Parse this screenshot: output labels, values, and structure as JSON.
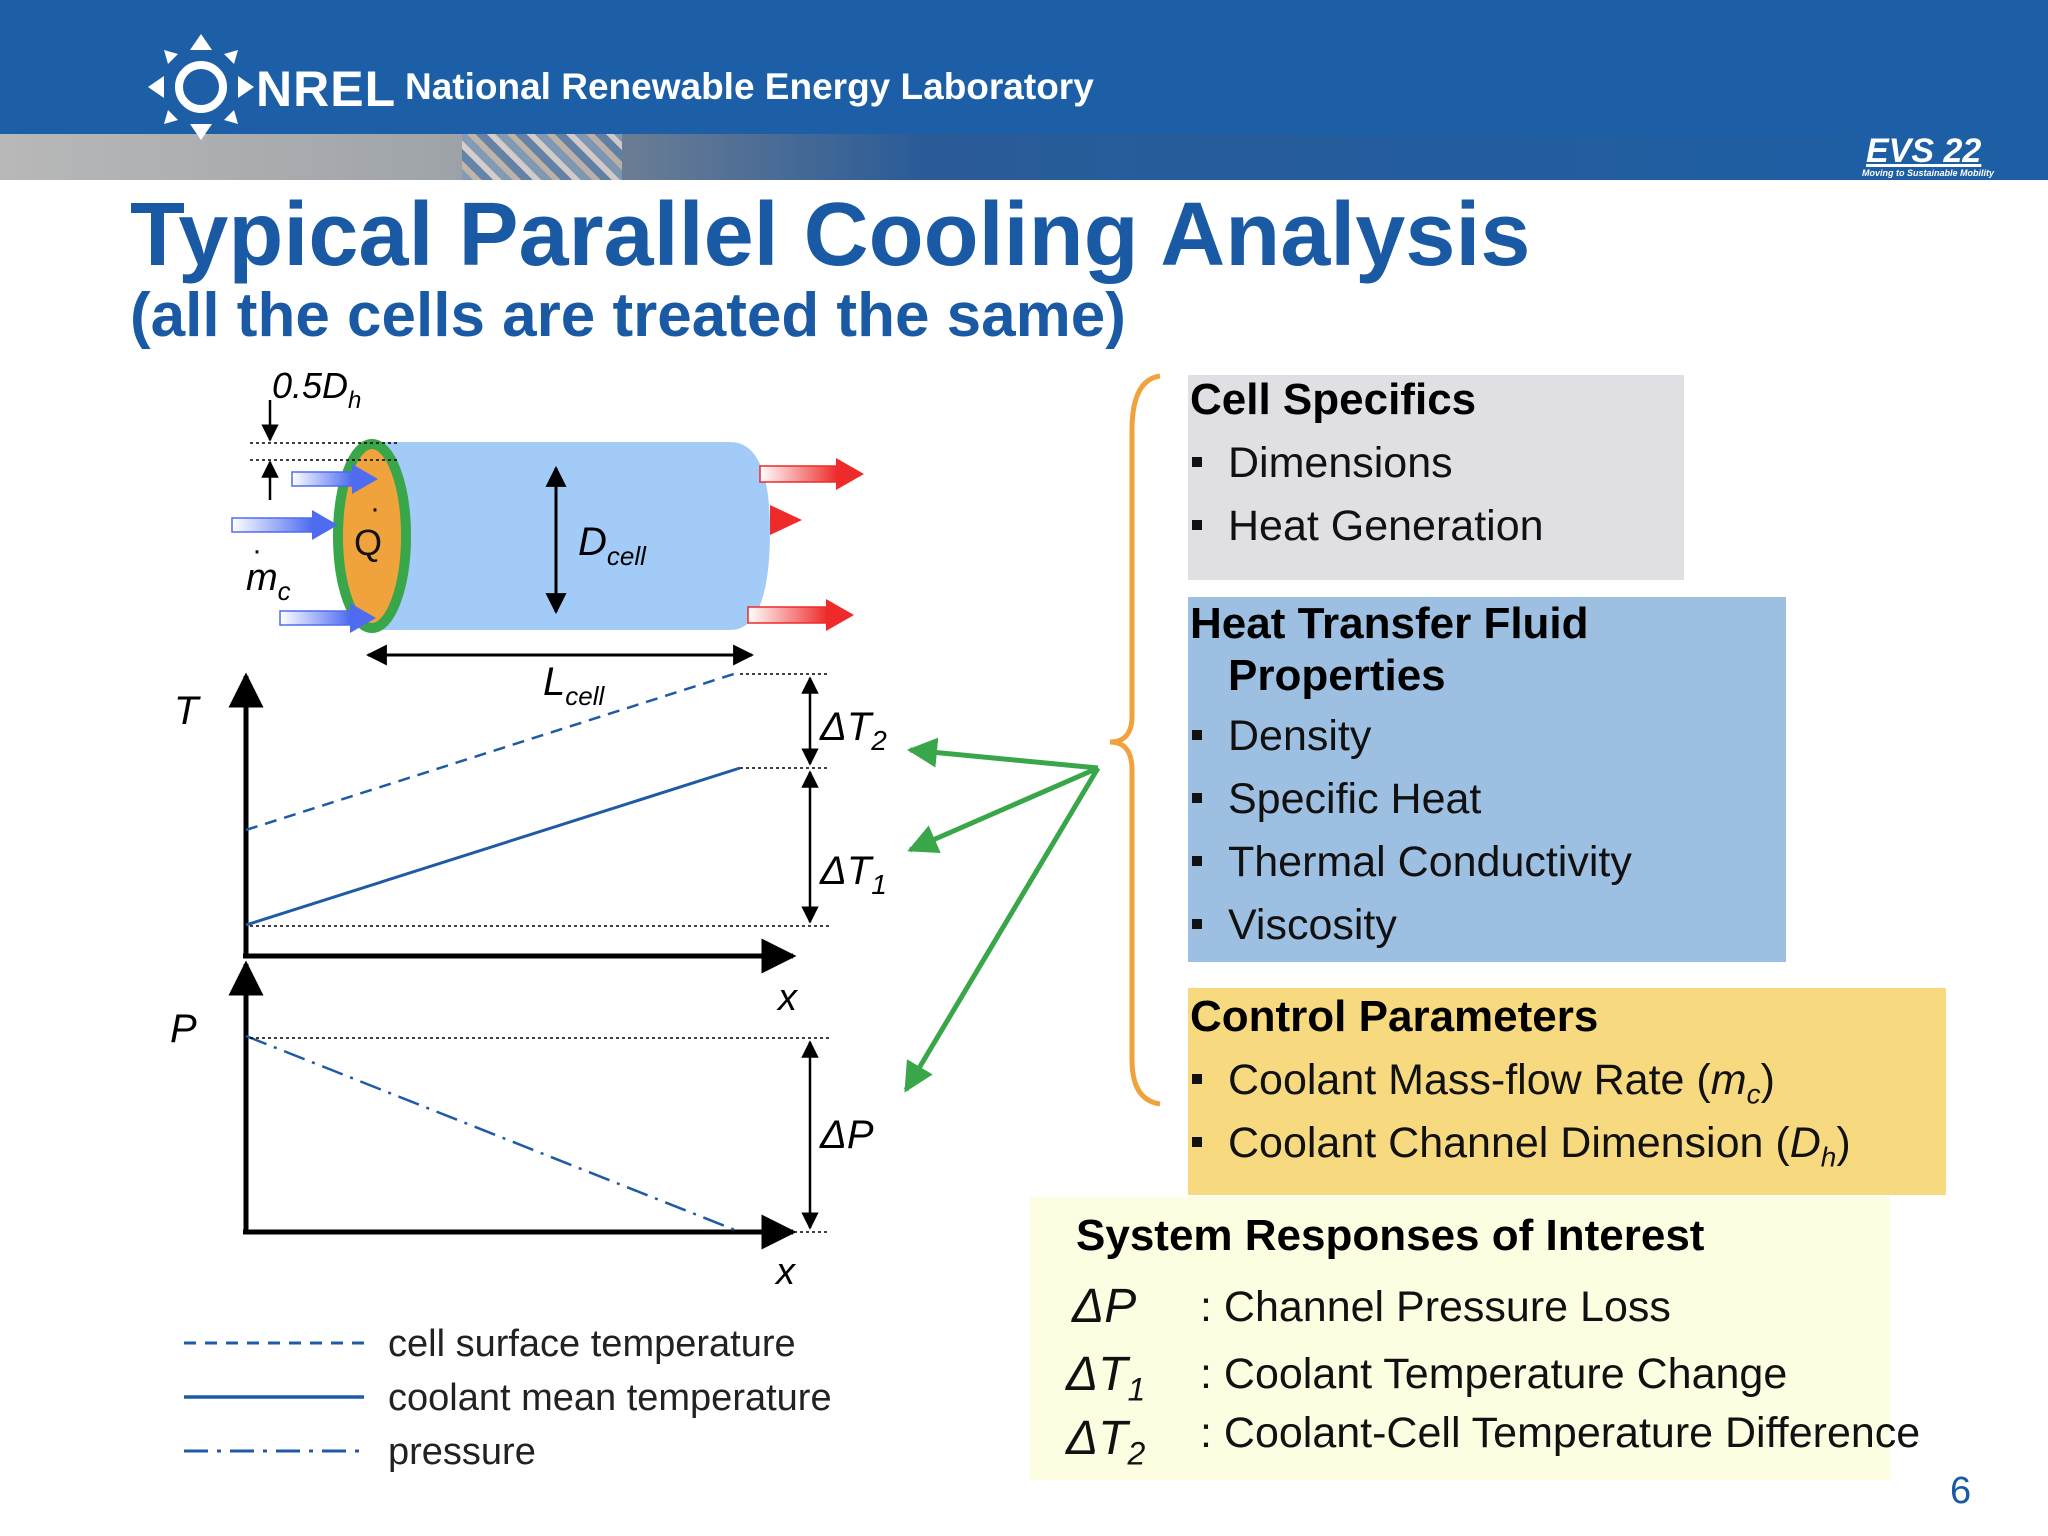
{
  "header": {
    "logo_text": "NREL",
    "org_name": "National Renewable Energy Laboratory",
    "event_badge": "EVS 22",
    "event_tagline": "Moving to Sustainable Mobility"
  },
  "title": "Typical Parallel Cooling Analysis",
  "subtitle": "(all the cells are treated the same)",
  "diagram": {
    "half_dh_label": "0.5D",
    "half_dh_sub": "h",
    "heat_label": "Q",
    "mass_flow_label": "m",
    "mass_flow_sub": "c",
    "d_cell_label": "D",
    "d_cell_sub": "cell",
    "l_cell_label": "L",
    "l_cell_sub": "cell",
    "t_axis": "T",
    "x_axis_1": "x",
    "p_axis": "P",
    "x_axis_2": "x",
    "delta_t2": "ΔT",
    "delta_t2_sub": "2",
    "delta_t1": "ΔT",
    "delta_t1_sub": "1",
    "delta_p": "ΔP"
  },
  "legend": [
    {
      "label": "cell surface temperature",
      "style": "dashed"
    },
    {
      "label": "coolant mean temperature",
      "style": "solid"
    },
    {
      "label": "pressure",
      "style": "dash-dot"
    }
  ],
  "cell_specifics": {
    "heading": "Cell Specifics",
    "items": [
      "Dimensions",
      "Heat Generation"
    ]
  },
  "fluid_properties": {
    "heading_line1": "Heat Transfer Fluid",
    "heading_line2": "Properties",
    "items": [
      "Density",
      "Specific Heat",
      "Thermal Conductivity",
      "Viscosity"
    ]
  },
  "control_parameters": {
    "heading": "Control Parameters",
    "item1_prefix": "Coolant Mass-flow Rate (",
    "item1_sym": "m",
    "item1_sub": "c",
    "item1_suffix": ")",
    "item2_prefix": "Coolant Channel Dimension (",
    "item2_sym": "D",
    "item2_sub": "h",
    "item2_suffix": ")"
  },
  "system_responses": {
    "heading": "System Responses of Interest",
    "rows": [
      {
        "symbol": "ΔP",
        "sub": "",
        "text": ": Channel Pressure Loss"
      },
      {
        "symbol": "ΔT",
        "sub": "1",
        "text": ": Coolant Temperature Change"
      },
      {
        "symbol": "ΔT",
        "sub": "2",
        "text": ": Coolant-Cell Temperature Difference"
      }
    ]
  },
  "page_number": "6",
  "colors": {
    "brand_blue": "#1c5fa6",
    "title_blue": "#1a5aa4",
    "cell_body": "#a3cbf7",
    "cell_end": "#f0a23c",
    "cell_rim": "#3aa64a",
    "arrow_green": "#3aa64a",
    "brace": "#f0a23c",
    "plot_line": "#1f5aa6"
  }
}
